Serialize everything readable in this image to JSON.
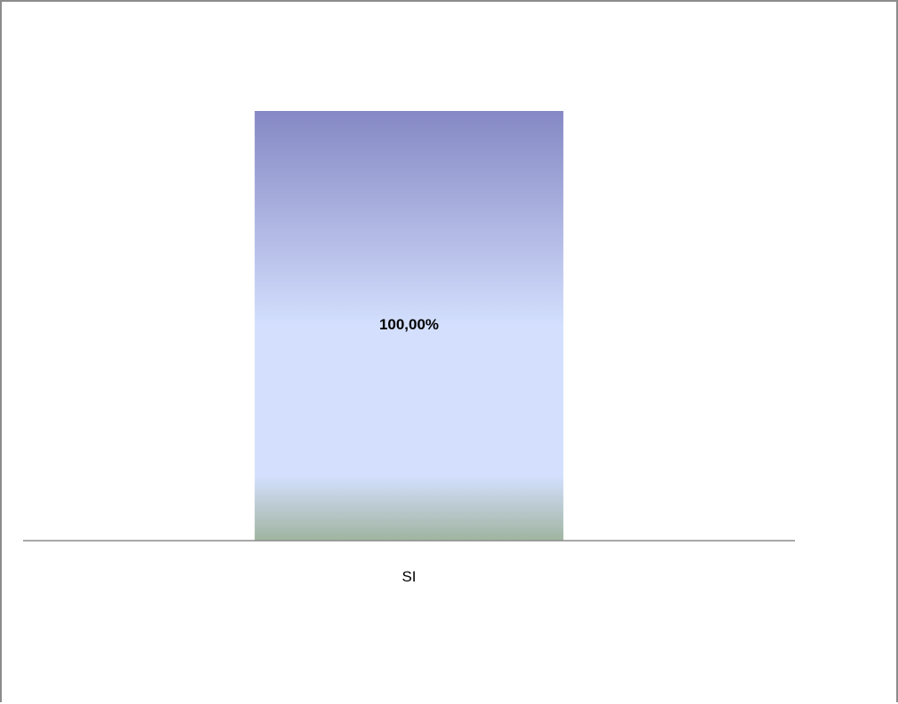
{
  "chart_data": {
    "type": "bar",
    "categories": [
      "SI"
    ],
    "values": [
      100
    ],
    "data_labels": [
      "100,00%"
    ],
    "ylim": [
      0,
      100
    ],
    "grid": false,
    "legend": "none",
    "colors": {
      "bar_top": "#8588c4",
      "bar_mid": "#d3dffd",
      "bar_bottom": "#a0b4a0",
      "axis": "#8c8c8c",
      "frame": "#8c8c8c",
      "text": "#000000"
    }
  }
}
